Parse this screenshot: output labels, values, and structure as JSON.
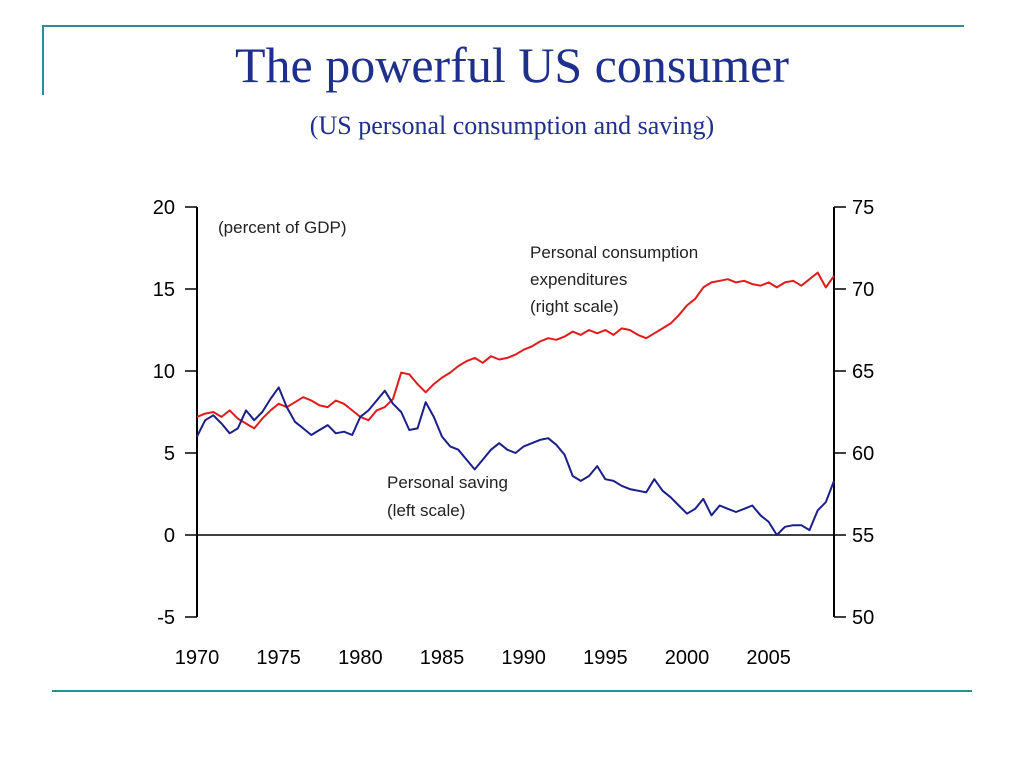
{
  "slide": {
    "title": "The powerful US consumer",
    "subtitle": "(US personal consumption and saving)"
  },
  "chart_data": {
    "type": "line",
    "annotations": {
      "unit_note": "(percent of GDP)",
      "consumption_label": [
        "Personal consumption",
        "expenditures",
        "(right scale)"
      ],
      "saving_label": [
        "Personal saving",
        "(left scale)"
      ]
    },
    "x_ticks": [
      "1970",
      "1975",
      "1980",
      "1985",
      "1990",
      "1995",
      "2000",
      "2005"
    ],
    "xlim": [
      1970,
      2009
    ],
    "left_axis": {
      "ticks": [
        "20",
        "15",
        "10",
        "5",
        "0",
        "-5"
      ],
      "ylim": [
        -5,
        20
      ]
    },
    "right_axis": {
      "ticks": [
        "75",
        "70",
        "65",
        "60",
        "55",
        "50"
      ],
      "ylim": [
        50,
        75
      ]
    },
    "grid": false,
    "series": [
      {
        "name": "Personal consumption expenditures",
        "axis": "right",
        "color": "#e01b1b",
        "x": [
          1970,
          1970.5,
          1971,
          1971.5,
          1972,
          1972.5,
          1973,
          1973.5,
          1974,
          1974.5,
          1975,
          1975.5,
          1976,
          1976.5,
          1977,
          1977.5,
          1978,
          1978.5,
          1979,
          1979.5,
          1980,
          1980.5,
          1981,
          1981.5,
          1982,
          1982.5,
          1983,
          1983.5,
          1984,
          1984.5,
          1985,
          1985.5,
          1986,
          1986.5,
          1987,
          1987.5,
          1988,
          1988.5,
          1989,
          1989.5,
          1990,
          1990.5,
          1991,
          1991.5,
          1992,
          1992.5,
          1993,
          1993.5,
          1994,
          1994.5,
          1995,
          1995.5,
          1996,
          1996.5,
          1997,
          1997.5,
          1998,
          1998.5,
          1999,
          1999.5,
          2000,
          2000.5,
          2001,
          2001.5,
          2002,
          2002.5,
          2003,
          2003.5,
          2004,
          2004.5,
          2005,
          2005.5,
          2006,
          2006.5,
          2007,
          2007.5,
          2008,
          2008.5,
          2009
        ],
        "y": [
          62.2,
          62.4,
          62.5,
          62.2,
          62.6,
          62.1,
          61.8,
          61.5,
          62.1,
          62.6,
          63.0,
          62.8,
          63.1,
          63.4,
          63.2,
          62.9,
          62.8,
          63.2,
          63.0,
          62.6,
          62.2,
          62.0,
          62.6,
          62.8,
          63.3,
          64.9,
          64.8,
          64.2,
          63.7,
          64.2,
          64.6,
          64.9,
          65.3,
          65.6,
          65.8,
          65.5,
          65.9,
          65.7,
          65.8,
          66.0,
          66.3,
          66.5,
          66.8,
          67.0,
          66.9,
          67.1,
          67.4,
          67.2,
          67.5,
          67.3,
          67.5,
          67.2,
          67.6,
          67.5,
          67.2,
          67.0,
          67.3,
          67.6,
          67.9,
          68.4,
          69.0,
          69.4,
          70.1,
          70.4,
          70.5,
          70.6,
          70.4,
          70.5,
          70.3,
          70.2,
          70.4,
          70.1,
          70.4,
          70.5,
          70.2,
          70.6,
          71.0,
          70.1,
          70.8
        ]
      },
      {
        "name": "Personal saving",
        "axis": "left",
        "color": "#1a1f8a",
        "x": [
          1970,
          1970.5,
          1971,
          1971.5,
          1972,
          1972.5,
          1973,
          1973.5,
          1974,
          1974.5,
          1975,
          1975.5,
          1976,
          1976.5,
          1977,
          1977.5,
          1978,
          1978.5,
          1979,
          1979.5,
          1980,
          1980.5,
          1981,
          1981.5,
          1982,
          1982.5,
          1983,
          1983.5,
          1984,
          1984.5,
          1985,
          1985.5,
          1986,
          1986.5,
          1987,
          1987.5,
          1988,
          1988.5,
          1989,
          1989.5,
          1990,
          1990.5,
          1991,
          1991.5,
          1992,
          1992.5,
          1993,
          1993.5,
          1994,
          1994.5,
          1995,
          1995.5,
          1996,
          1996.5,
          1997,
          1997.5,
          1998,
          1998.5,
          1999,
          1999.5,
          2000,
          2000.5,
          2001,
          2001.5,
          2002,
          2002.5,
          2003,
          2003.5,
          2004,
          2004.5,
          2005,
          2005.5,
          2006,
          2006.5,
          2007,
          2007.5,
          2008,
          2008.5,
          2009
        ],
        "y": [
          6.0,
          7.0,
          7.3,
          6.8,
          6.2,
          6.5,
          7.6,
          7.0,
          7.5,
          8.3,
          9.0,
          7.8,
          6.9,
          6.5,
          6.1,
          6.4,
          6.7,
          6.2,
          6.3,
          6.1,
          7.2,
          7.6,
          8.2,
          8.8,
          8.0,
          7.5,
          6.4,
          6.5,
          8.1,
          7.2,
          6.0,
          5.4,
          5.2,
          4.6,
          4.0,
          4.6,
          5.2,
          5.6,
          5.2,
          5.0,
          5.4,
          5.6,
          5.8,
          5.9,
          5.5,
          4.9,
          3.6,
          3.3,
          3.6,
          4.2,
          3.4,
          3.3,
          3.0,
          2.8,
          2.7,
          2.6,
          3.4,
          2.7,
          2.3,
          1.8,
          1.3,
          1.6,
          2.2,
          1.2,
          1.8,
          1.6,
          1.4,
          1.6,
          1.8,
          1.2,
          0.8,
          0.0,
          0.5,
          0.6,
          0.6,
          0.3,
          1.5,
          2.0,
          3.3
        ]
      }
    ]
  }
}
